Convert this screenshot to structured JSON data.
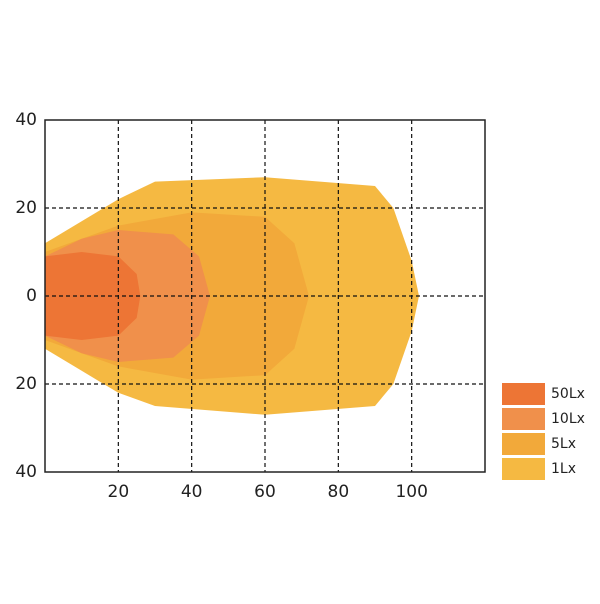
{
  "chart_data": {
    "type": "contour",
    "xlim": [
      0,
      120
    ],
    "xticks": [
      20,
      40,
      60,
      80,
      100
    ],
    "ylim": [
      -40,
      40
    ],
    "yticks": [
      {
        "value": -40,
        "label": "40"
      },
      {
        "value": -20,
        "label": "20"
      },
      0,
      20,
      40
    ],
    "grid": true,
    "legend": "bottom-right",
    "series": [
      {
        "name": "50Lx",
        "color": "#ed7535",
        "x": [
          0,
          10,
          20,
          25,
          26,
          25,
          20,
          10,
          0
        ],
        "values": [
          9,
          10,
          9,
          5,
          0,
          -5,
          -9,
          -10,
          -9
        ]
      },
      {
        "name": "10Lx",
        "color": "#f0904b",
        "x": [
          0,
          10,
          20,
          35,
          42,
          45,
          42,
          35,
          20,
          10,
          0
        ],
        "values": [
          9,
          13,
          15,
          14,
          9,
          0,
          -9,
          -14,
          -15,
          -13,
          -9
        ]
      },
      {
        "name": "5Lx",
        "color": "#f2a93a",
        "x": [
          0,
          10,
          20,
          40,
          60,
          68,
          72,
          68,
          60,
          40,
          20,
          10,
          0
        ],
        "values": [
          10,
          13,
          16,
          19,
          18,
          12,
          0,
          -12,
          -18,
          -19,
          -16,
          -13,
          -10
        ]
      },
      {
        "name": "1Lx",
        "color": "#f5b942",
        "x": [
          0,
          10,
          20,
          30,
          60,
          90,
          95,
          100,
          102,
          100,
          95,
          90,
          60,
          30,
          20,
          10,
          0
        ],
        "values": [
          12,
          17,
          22,
          26,
          27,
          25,
          20,
          8,
          0,
          -8,
          -20,
          -25,
          -27,
          -25,
          -22,
          -17,
          -12
        ]
      }
    ]
  }
}
